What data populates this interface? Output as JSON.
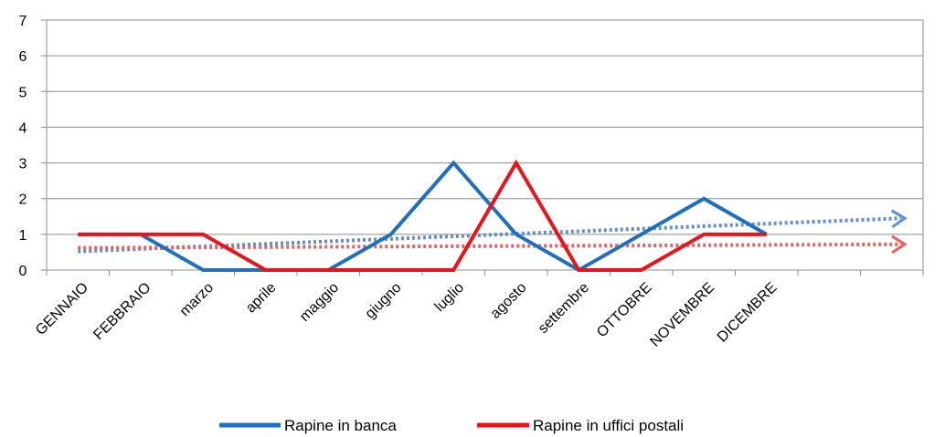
{
  "chart_data": {
    "type": "line",
    "categories": [
      "GENNAIO",
      "FEBBRAIO",
      "marzo",
      "aprile",
      "maggio",
      "giugno",
      "luglio",
      "agosto",
      "settembre",
      "OTTOBRE",
      "NOVEMBRE",
      "DICEMBRE"
    ],
    "ylim": [
      0,
      7
    ],
    "yticks": [
      "0",
      "1",
      "2",
      "3",
      "4",
      "5",
      "6",
      "7"
    ],
    "grid": true,
    "legend_position": "bottom",
    "series": [
      {
        "name": "Rapine in banca",
        "color": "#1f6fbf",
        "values": [
          1,
          1,
          0,
          0,
          0,
          1,
          3,
          1,
          0,
          1,
          2,
          1
        ],
        "trendline": {
          "color": "#5b8fd6",
          "style": "dotted-arrow",
          "start": 0.52,
          "end": 1.45
        }
      },
      {
        "name": "Rapine in uffici postali",
        "color": "#e8141b",
        "values": [
          1,
          1,
          1,
          0,
          0,
          0,
          0,
          3,
          0,
          0,
          1,
          1
        ],
        "trendline": {
          "color": "#f25d5d",
          "style": "dotted-arrow",
          "start": 0.62,
          "end": 0.72
        }
      }
    ]
  }
}
